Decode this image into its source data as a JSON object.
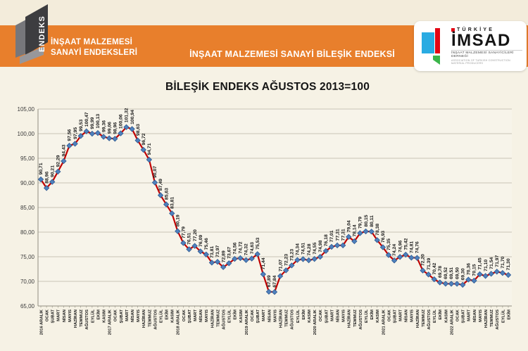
{
  "header": {
    "endeks_logo_label": "ENDEKS",
    "left_title_line1": "İNŞAAT MALZEMESİ",
    "left_title_line2": "SANAYİ ENDEKSLERİ",
    "band_title": "İNŞAAT MALZEMESİ SANAYİ BİLEŞİK ENDEKSİ",
    "imsad_logo": {
      "country": "TÜRKİYE",
      "name": "İMSAD",
      "subtitle_tr": "İNŞAAT MALZEMESİ SANAYİCİLERİ DERNEĞİ",
      "subtitle_en": "ASSOCIATION OF TURKISH CONSTRUCTION MATERIAL PRODUCERS",
      "colors": {
        "blue": "#29abe2",
        "red": "#e30613",
        "green": "#3ab54a"
      }
    },
    "band_color": "#e87f2c"
  },
  "chart_data": {
    "type": "line",
    "title": "BİLEŞİK ENDEKS AĞUSTOS 2013=100",
    "categories": [
      "2016 ARALIK",
      "OCAK",
      "ŞUBAT",
      "MART",
      "NİSAN",
      "MAYIS",
      "HAZİRAN",
      "TEMMUZ",
      "AĞUSTOS",
      "EYLÜL",
      "EKİM",
      "KASIM",
      "2017 ARALIK",
      "OCAK",
      "ŞUBAT",
      "MART",
      "NİSAN",
      "MAYIS",
      "HAZİRAN",
      "TEMMUZ",
      "AĞUSTOS",
      "EYLÜL",
      "EKİM",
      "KASIM",
      "2018 ARALIK",
      "OCAK",
      "ŞUBAT",
      "MART",
      "NİSAN",
      "MAYIS",
      "HAZİRAN",
      "TEMMUZ",
      "AĞUSTOS",
      "EYLÜL",
      "EKİM",
      "KASIM",
      "2019 ARALIK",
      "OCAK",
      "ŞUBAT",
      "MART",
      "NİSAN",
      "MAYIS",
      "HAZİRAN",
      "TEMMUZ",
      "AĞUSTOS",
      "EYLÜL",
      "EKİM",
      "KASIM",
      "2020 ARALIK",
      "OCAK",
      "ŞUBAT",
      "MART",
      "NİSAN",
      "MAYIS",
      "HAZİRAN",
      "TEMMUZ",
      "AĞUSTOS",
      "EYLÜL",
      "EKİM",
      "KASIM",
      "2021 ARALIK",
      "OCAK",
      "ŞUBAT",
      "MART",
      "NİSAN",
      "MAYIS",
      "HAZİRAN",
      "TEMMUZ",
      "AĞUSTOS",
      "EYLÜL",
      "EKİM",
      "KASIM",
      "2022 ARALIK",
      "OCAK",
      "ŞUBAT",
      "MART",
      "NİSAN",
      "MAYIS",
      "HAZİRAN",
      "TEMMUZ",
      "AĞUSTOS",
      "EYLÜL",
      "EKİM"
    ],
    "values": [
      90.71,
      88.96,
      90.21,
      92.29,
      94.43,
      97.56,
      97.95,
      99.53,
      100.47,
      99.99,
      100.13,
      99.36,
      99.06,
      98.96,
      100.06,
      101.32,
      100.94,
      98.63,
      96.72,
      94.71,
      90.07,
      87.49,
      85.63,
      83.81,
      80.19,
      77.79,
      76.51,
      77.2,
      76.09,
      75.46,
      73.81,
      73.97,
      72.89,
      73.67,
      74.56,
      74.72,
      74.32,
      74.63,
      75.53,
      71.44,
      67.89,
      67.84,
      71.07,
      72.23,
      73.23,
      74.34,
      74.51,
      74.28,
      74.55,
      74.98,
      76.18,
      77.01,
      77.31,
      77.31,
      79.04,
      78.14,
      79.79,
      80.15,
      80.11,
      78.38,
      76.93,
      75.35,
      74.24,
      74.96,
      75.42,
      74.81,
      74.76,
      72.2,
      71.39,
      70.42,
      69.78,
      69.52,
      69.51,
      69.5,
      69.3,
      70.36,
      70.15,
      71.45,
      71.1,
      71.54,
      71.97,
      71.7,
      71.3
    ],
    "ylim": [
      65,
      105
    ],
    "ytick_step": 5,
    "ytick_labels": [
      "65,00",
      "70,00",
      "75,00",
      "80,00",
      "85,00",
      "90,00",
      "95,00",
      "100,00",
      "105,00"
    ],
    "decimal_separator": ",",
    "grid": true,
    "legend": false,
    "data_labels": true,
    "label_rotation_deg": 90,
    "style": {
      "line_color": "#c00000",
      "marker_fill": "#4f81bd",
      "marker_stroke": "#2f5a92",
      "marker_shape": "diamond",
      "grid_color": "#c9c5b6",
      "axis_color": "#908d80",
      "plot_bg": "#f7f4ea",
      "label_color": "#1a1a1a"
    }
  }
}
